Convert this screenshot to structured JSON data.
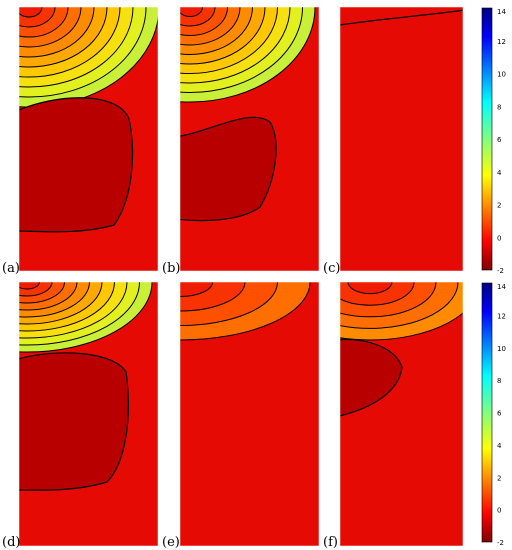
{
  "chart_data": [
    {
      "type": "heatmap",
      "panel_label": "(a)"
    },
    {
      "type": "heatmap",
      "panel_label": "(b)"
    },
    {
      "type": "heatmap",
      "panel_label": "(c)"
    },
    {
      "type": "heatmap",
      "panel_label": "(d)"
    },
    {
      "type": "heatmap",
      "panel_label": "(e)"
    },
    {
      "type": "heatmap",
      "panel_label": "(f)"
    }
  ],
  "colorbar": {
    "ticks": [
      "14",
      "12",
      "10",
      "8",
      "6",
      "4",
      "2",
      "0",
      "-2"
    ],
    "tick_values": [
      14,
      12,
      10,
      8,
      6,
      4,
      2,
      0,
      -2
    ],
    "range": [
      -2,
      14
    ],
    "colormap": "jet"
  },
  "colors": {
    "dark_red": "#b80000",
    "red": "#e60a04",
    "contour_line": "#000000"
  }
}
